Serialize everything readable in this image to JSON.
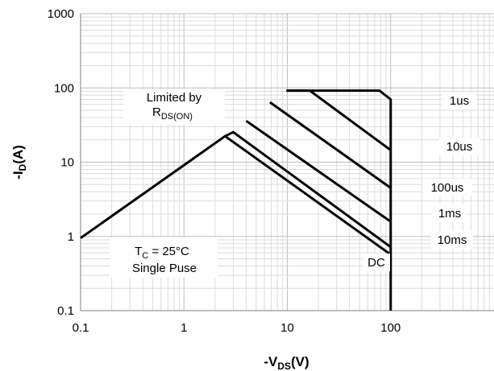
{
  "chart_data": {
    "type": "line",
    "x_scale": "log",
    "y_scale": "log",
    "xlim": [
      0.1,
      1000
    ],
    "ylim": [
      0.1,
      1000
    ],
    "grid": true,
    "x_ticks": [
      "0.1",
      "1",
      "10",
      "100"
    ],
    "y_ticks": [
      "0.1",
      "1",
      "10",
      "100",
      "1000"
    ],
    "xlabel": {
      "pre": "-V",
      "sub": "DS",
      "post": "(V)"
    },
    "ylabel": {
      "pre": "-I",
      "sub": "D",
      "post": "(A)"
    },
    "series": [
      {
        "name": "DC",
        "points": [
          [
            0.1,
            0.95
          ],
          [
            2.5,
            22.4
          ],
          [
            100,
            0.57
          ]
        ]
      },
      {
        "name": "10ms",
        "points": [
          [
            2.5,
            22.4
          ],
          [
            3.0,
            25.4
          ],
          [
            100,
            0.72
          ]
        ]
      },
      {
        "name": "1ms",
        "points": [
          [
            4.0,
            36
          ],
          [
            100,
            1.58
          ]
        ]
      },
      {
        "name": "100us",
        "points": [
          [
            6.8,
            64
          ],
          [
            100,
            4.5
          ]
        ]
      },
      {
        "name": "10us",
        "points": [
          [
            9.8,
            92
          ],
          [
            16.5,
            92
          ],
          [
            100,
            14.5
          ]
        ]
      },
      {
        "name": "1us",
        "points": [
          [
            9.8,
            92
          ],
          [
            78,
            92
          ],
          [
            100,
            70
          ],
          [
            100,
            0.1
          ]
        ]
      }
    ],
    "annotations": [
      {
        "pre": "Limited by",
        "line2": {
          "pre": "R",
          "sub": "DS(ON)"
        }
      },
      {
        "line1": {
          "pre": "T",
          "sub": "C",
          "post": " = 25°C"
        },
        "line2": "Single Puse"
      }
    ],
    "series_labels": [
      "1us",
      "10us",
      "100us",
      "1ms",
      "10ms",
      "DC"
    ]
  }
}
